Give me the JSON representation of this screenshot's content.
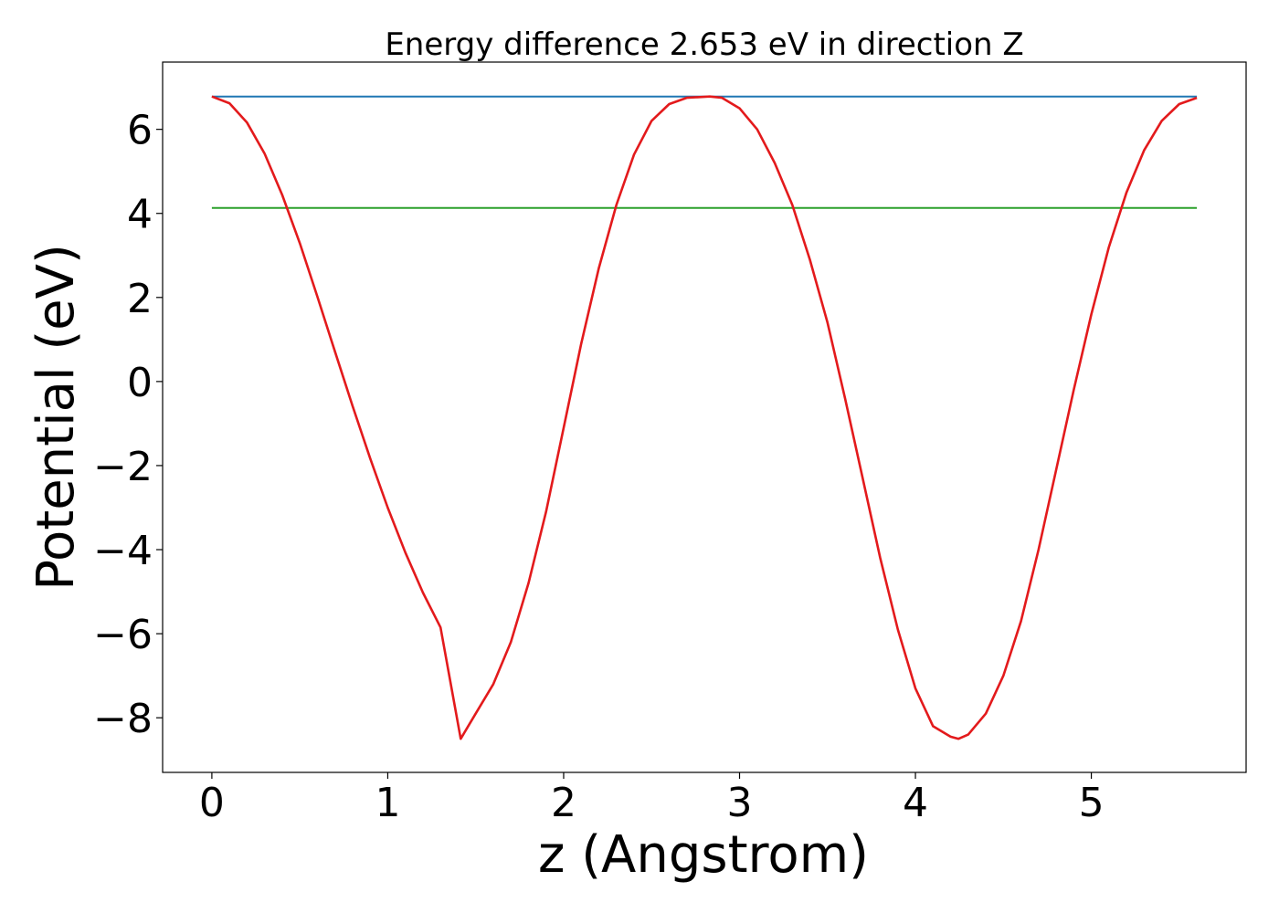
{
  "chart_data": {
    "type": "line",
    "title": "Energy difference 2.653 eV in direction Z",
    "xlabel": "z (Angstrom)",
    "ylabel": "Potential (eV)",
    "xlim": [
      -0.28,
      5.88
    ],
    "ylim": [
      -9.3,
      7.6
    ],
    "xticks": [
      0,
      1,
      2,
      3,
      4,
      5
    ],
    "xtick_labels": [
      "0",
      "1",
      "2",
      "3",
      "4",
      "5"
    ],
    "yticks": [
      -8,
      -6,
      -4,
      -2,
      0,
      2,
      4,
      6
    ],
    "ytick_labels": [
      "−8",
      "−6",
      "−4",
      "−2",
      "0",
      "2",
      "4",
      "6"
    ],
    "grid": false,
    "legend": "none",
    "series": [
      {
        "color": "#e31a1c",
        "x": [
          0.0,
          0.1,
          0.2,
          0.3,
          0.4,
          0.5,
          0.6,
          0.7,
          0.8,
          0.9,
          1.0,
          1.1,
          1.2,
          1.3,
          1.415,
          1.5,
          1.6,
          1.7,
          1.8,
          1.9,
          2.0,
          2.1,
          2.2,
          2.3,
          2.4,
          2.5,
          2.6,
          2.7,
          2.83,
          2.9,
          3.0,
          3.1,
          3.2,
          3.3,
          3.4,
          3.5,
          3.6,
          3.7,
          3.8,
          3.9,
          4.0,
          4.1,
          4.2,
          4.245,
          4.3,
          4.4,
          4.5,
          4.6,
          4.7,
          4.8,
          4.9,
          5.0,
          5.1,
          5.2,
          5.3,
          5.4,
          5.5,
          5.6
        ],
        "y": [
          6.78,
          6.62,
          6.16,
          5.42,
          4.44,
          3.29,
          2.02,
          0.71,
          -0.58,
          -1.83,
          -3.0,
          -4.07,
          -5.02,
          -5.85,
          -8.5,
          -7.9,
          -7.2,
          -6.2,
          -4.8,
          -3.1,
          -1.1,
          0.9,
          2.7,
          4.2,
          5.4,
          6.2,
          6.6,
          6.75,
          6.78,
          6.75,
          6.5,
          6.0,
          5.2,
          4.2,
          2.9,
          1.4,
          -0.4,
          -2.3,
          -4.2,
          -5.9,
          -7.3,
          -8.2,
          -8.45,
          -8.5,
          -8.4,
          -7.9,
          -7.0,
          -5.7,
          -4.0,
          -2.1,
          -0.2,
          1.6,
          3.2,
          4.5,
          5.5,
          6.2,
          6.6,
          6.75
        ]
      },
      {
        "color": "#1f77b4",
        "x": [
          0.0,
          5.6
        ],
        "y": [
          6.78,
          6.78
        ]
      },
      {
        "color": "#2ca02c",
        "x": [
          0.0,
          5.6
        ],
        "y": [
          4.13,
          4.13
        ]
      }
    ]
  }
}
